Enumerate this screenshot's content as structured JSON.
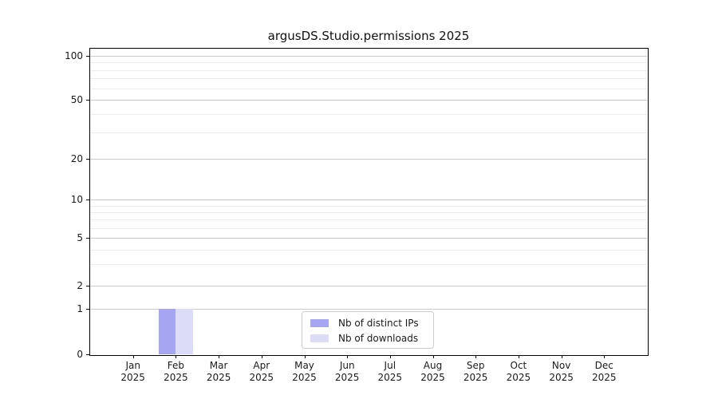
{
  "chart_data": {
    "type": "bar",
    "title": "argusDS.Studio.permissions 2025",
    "xlabel": "",
    "ylabel": "",
    "year": "2025",
    "categories": [
      "Jan",
      "Feb",
      "Mar",
      "Apr",
      "May",
      "Jun",
      "Jul",
      "Aug",
      "Sep",
      "Oct",
      "Nov",
      "Dec"
    ],
    "series": [
      {
        "name": "Nb of distinct IPs",
        "color": "#a5a5f2",
        "values": [
          0,
          1,
          0,
          0,
          0,
          0,
          0,
          0,
          0,
          0,
          0,
          0
        ]
      },
      {
        "name": "Nb of downloads",
        "color": "#dcdcf8",
        "values": [
          0,
          1,
          0,
          0,
          0,
          0,
          0,
          0,
          0,
          0,
          0,
          0
        ]
      }
    ],
    "y_axis": {
      "scale": "symlog",
      "major_ticks": [
        100,
        50,
        20,
        10,
        5,
        2,
        1,
        0
      ],
      "tick_fractions_from_top": {
        "100": 0.0235,
        "50": 0.167,
        "20": 0.36,
        "10": 0.494,
        "5": 0.619,
        "2": 0.775,
        "1": 0.851,
        "0": 1.0
      },
      "minor_gridlines": [
        90,
        80,
        70,
        60,
        40,
        30,
        9,
        8,
        7,
        6,
        4,
        3
      ]
    },
    "grid": "horizontal",
    "legend": {
      "position": "lower center",
      "entries": [
        "Nb of distinct IPs",
        "Nb of downloads"
      ]
    }
  }
}
